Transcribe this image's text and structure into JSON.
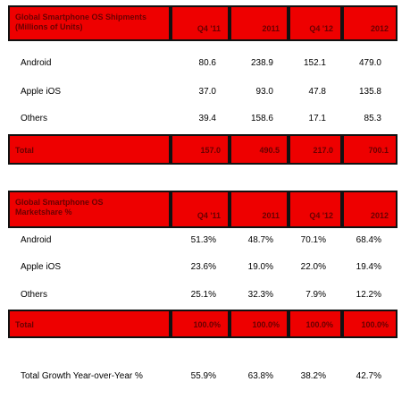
{
  "table1": {
    "header_label": "Global Smartphone OS Shipments (Millions of Units)",
    "columns": [
      "Q4 '11",
      "2011",
      "Q4 '12",
      "2012"
    ],
    "rows": [
      {
        "label": "Android",
        "values": [
          "80.6",
          "238.9",
          "152.1",
          "479.0"
        ]
      },
      {
        "label": "Apple iOS",
        "values": [
          "37.0",
          "93.0",
          "47.8",
          "135.8"
        ]
      },
      {
        "label": "Others",
        "values": [
          "39.4",
          "158.6",
          "17.1",
          "85.3"
        ]
      }
    ],
    "total": {
      "label": "Total",
      "values": [
        "157.0",
        "490.5",
        "217.0",
        "700.1"
      ]
    }
  },
  "table2": {
    "header_label": "Global Smartphone OS Marketshare %",
    "columns": [
      "Q4 '11",
      "2011",
      "Q4 '12",
      "2012"
    ],
    "rows": [
      {
        "label": "Android",
        "values": [
          "51.3%",
          "48.7%",
          "70.1%",
          "68.4%"
        ]
      },
      {
        "label": "Apple iOS",
        "values": [
          "23.6%",
          "19.0%",
          "22.0%",
          "19.4%"
        ]
      },
      {
        "label": "Others",
        "values": [
          "25.1%",
          "32.3%",
          "7.9%",
          "12.2%"
        ]
      }
    ],
    "total": {
      "label": "Total",
      "values": [
        "100.0%",
        "100.0%",
        "100.0%",
        "100.0%"
      ]
    }
  },
  "growth": {
    "label": "Total Growth Year-over-Year %",
    "values": [
      "55.9%",
      "63.8%",
      "38.2%",
      "42.7%"
    ]
  },
  "colors": {
    "header_red": "#ee0000",
    "header_text": "#6a0000"
  }
}
